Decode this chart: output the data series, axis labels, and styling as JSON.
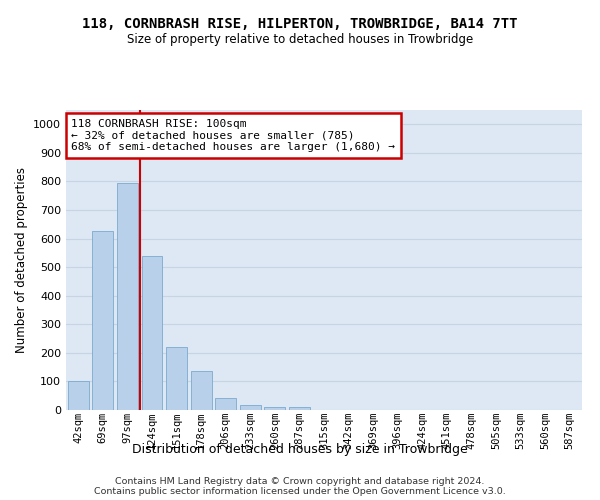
{
  "title": "118, CORNBRASH RISE, HILPERTON, TROWBRIDGE, BA14 7TT",
  "subtitle": "Size of property relative to detached houses in Trowbridge",
  "xlabel": "Distribution of detached houses by size in Trowbridge",
  "ylabel": "Number of detached properties",
  "categories": [
    "42sqm",
    "69sqm",
    "97sqm",
    "124sqm",
    "151sqm",
    "178sqm",
    "206sqm",
    "233sqm",
    "260sqm",
    "287sqm",
    "315sqm",
    "342sqm",
    "369sqm",
    "396sqm",
    "424sqm",
    "451sqm",
    "478sqm",
    "505sqm",
    "533sqm",
    "560sqm",
    "587sqm"
  ],
  "values": [
    103,
    625,
    795,
    540,
    220,
    135,
    43,
    18,
    12,
    10,
    0,
    0,
    0,
    0,
    0,
    0,
    0,
    0,
    0,
    0,
    0
  ],
  "bar_color": "#b8d0ea",
  "bar_edge_color": "#7aaacf",
  "grid_color": "#c8d4e4",
  "bg_color": "#dde8f4",
  "annotation_text": "118 CORNBRASH RISE: 100sqm\n← 32% of detached houses are smaller (785)\n68% of semi-detached houses are larger (1,680) →",
  "annotation_box_facecolor": "#ffffff",
  "annotation_box_edgecolor": "#cc0000",
  "vline_x": 2.5,
  "ylim": [
    0,
    1050
  ],
  "yticks": [
    0,
    100,
    200,
    300,
    400,
    500,
    600,
    700,
    800,
    900,
    1000
  ],
  "footer_line1": "Contains HM Land Registry data © Crown copyright and database right 2024.",
  "footer_line2": "Contains public sector information licensed under the Open Government Licence v3.0."
}
